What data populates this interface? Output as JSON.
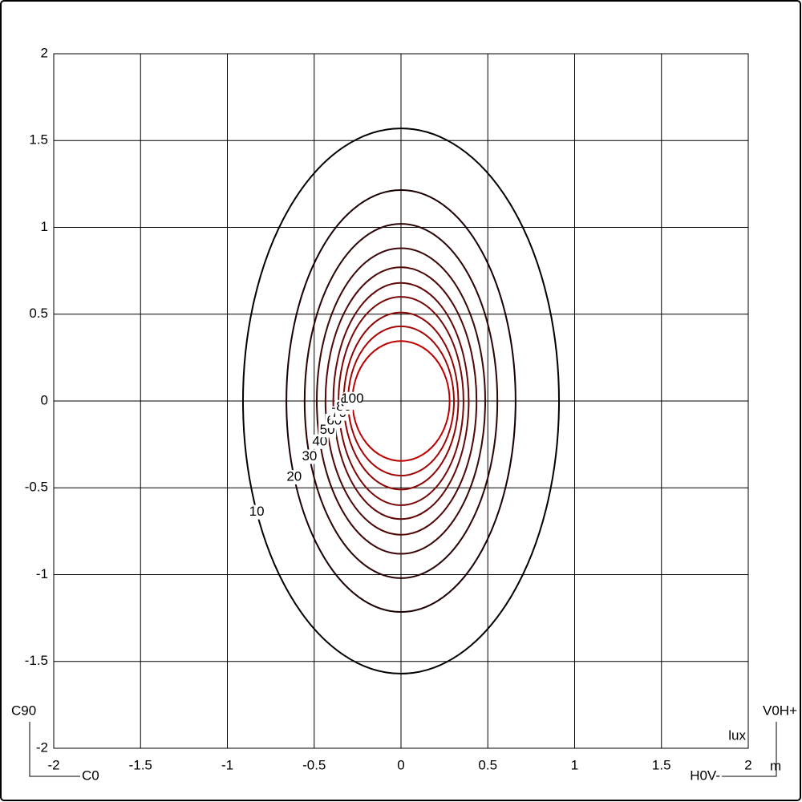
{
  "chart_data": {
    "type": "contour",
    "xlim": [
      -2,
      2
    ],
    "ylim": [
      -2,
      2
    ],
    "xticks": [
      -2,
      -1.5,
      -1,
      -0.5,
      0,
      0.5,
      1,
      1.5,
      2
    ],
    "yticks": [
      -2,
      -1.5,
      -1,
      -0.5,
      0,
      0.5,
      1,
      1.5,
      2
    ],
    "grid": true,
    "unit_label": "lux",
    "axis_unit": "m",
    "corner_labels": {
      "c90": "C90",
      "c0": "C0",
      "v0h_plus": "V0H+",
      "h0v_minus": "H0V-"
    },
    "contours": [
      {
        "level": 10,
        "rx": 0.91,
        "ry": 1.57,
        "color": "#000000"
      },
      {
        "level": 20,
        "rx": 0.66,
        "ry": 1.215,
        "color": "#1a0000"
      },
      {
        "level": 30,
        "rx": 0.555,
        "ry": 1.02,
        "color": "#2a0404"
      },
      {
        "level": 40,
        "rx": 0.485,
        "ry": 0.88,
        "color": "#3d0606"
      },
      {
        "level": 50,
        "rx": 0.435,
        "ry": 0.77,
        "color": "#500808"
      },
      {
        "level": 60,
        "rx": 0.39,
        "ry": 0.68,
        "color": "#640808"
      },
      {
        "level": 70,
        "rx": 0.36,
        "ry": 0.6,
        "color": "#780808"
      },
      {
        "level": 80,
        "rx": 0.33,
        "ry": 0.51,
        "color": "#8e0606"
      },
      {
        "level": 90,
        "rx": 0.305,
        "ry": 0.43,
        "color": "#a40404"
      },
      {
        "level": 100,
        "rx": 0.28,
        "ry": 0.345,
        "color": "#c00000"
      }
    ]
  }
}
